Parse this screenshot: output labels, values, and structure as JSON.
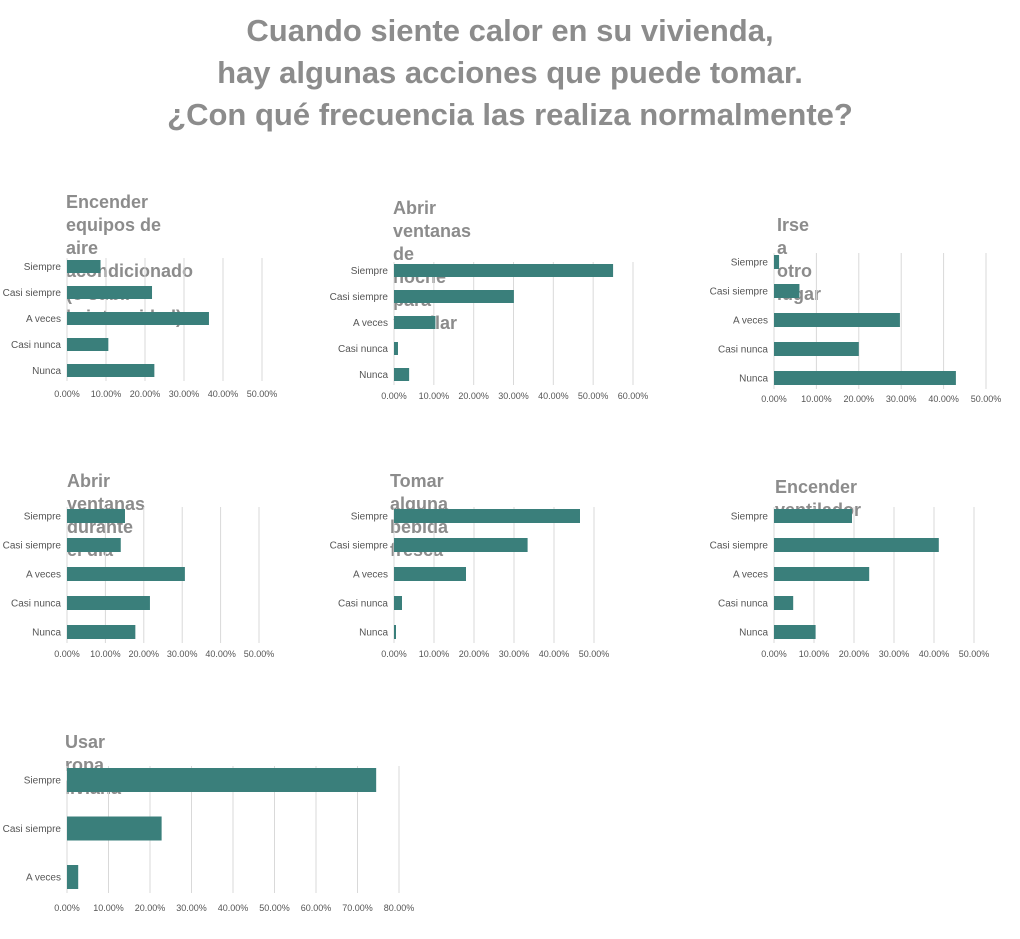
{
  "title_lines": [
    "Cuando siente calor en su vivienda,",
    "hay algunas acciones que puede tomar.",
    "¿Con qué frecuencia las realiza normalmente?"
  ],
  "colors": {
    "bar": "#3a7f7b",
    "grid": "#d9d9d9",
    "title": "#8c8c8c"
  },
  "chart_data": [
    {
      "type": "bar",
      "orientation": "horizontal",
      "title": "Encender equipos de aire\nacondicionado (o subir\nla intensidad)",
      "categories": [
        "Siempre",
        "Casi siempre",
        "A veces",
        "Casi nunca",
        "Nunca"
      ],
      "values": [
        8.6,
        21.8,
        36.4,
        10.6,
        22.4
      ],
      "xlim": [
        0,
        50
      ],
      "ticks": [
        0,
        10,
        20,
        30,
        40,
        50
      ],
      "tick_labels": [
        "0.00%",
        "10.00%",
        "20.00%",
        "30.00%",
        "40.00%",
        "50.00%"
      ],
      "grid": true,
      "legend": "none"
    },
    {
      "type": "bar",
      "orientation": "horizontal",
      "title": "Abrir ventanas de noche\npara ventilar",
      "categories": [
        "Siempre",
        "Casi siempre",
        "A veces",
        "Casi nunca",
        "Nunca"
      ],
      "values": [
        55.0,
        30.1,
        10.4,
        1.0,
        3.8
      ],
      "xlim": [
        0,
        60
      ],
      "ticks": [
        0,
        10,
        20,
        30,
        40,
        50,
        60
      ],
      "tick_labels": [
        "0.00%",
        "10.00%",
        "20.00%",
        "30.00%",
        "40.00%",
        "50.00%",
        "60.00%"
      ],
      "grid": true,
      "legend": "none"
    },
    {
      "type": "bar",
      "orientation": "horizontal",
      "title": "Irse a otro lugar",
      "categories": [
        "Siempre",
        "Casi siempre",
        "A veces",
        "Casi nunca",
        "Nunca"
      ],
      "values": [
        1.2,
        6.0,
        29.7,
        20.0,
        42.9
      ],
      "xlim": [
        0,
        50
      ],
      "ticks": [
        0,
        10,
        20,
        30,
        40,
        50
      ],
      "tick_labels": [
        "0.00%",
        "10.00%",
        "20.00%",
        "30.00%",
        "40.00%",
        "50.00%"
      ],
      "grid": true,
      "legend": "none"
    },
    {
      "type": "bar",
      "orientation": "horizontal",
      "title": "Abrir ventanas durante el día",
      "categories": [
        "Siempre",
        "Casi siempre",
        "A veces",
        "Casi nunca",
        "Nunca"
      ],
      "values": [
        15.1,
        14.0,
        30.7,
        21.6,
        17.8
      ],
      "xlim": [
        0,
        50
      ],
      "ticks": [
        0,
        10,
        20,
        30,
        40,
        50
      ],
      "tick_labels": [
        "0.00%",
        "10.00%",
        "20.00%",
        "30.00%",
        "40.00%",
        "50.00%"
      ],
      "grid": true,
      "legend": "none"
    },
    {
      "type": "bar",
      "orientation": "horizontal",
      "title": "Tomar alguna bebida fresca",
      "categories": [
        "Siempre",
        "Casi siempre",
        "A veces",
        "Casi nunca",
        "Nunca"
      ],
      "values": [
        46.5,
        33.4,
        18.0,
        2.0,
        0.5
      ],
      "xlim": [
        0,
        50
      ],
      "ticks": [
        0,
        10,
        20,
        30,
        40,
        50
      ],
      "tick_labels": [
        "0.00%",
        "10.00%",
        "20.00%",
        "30.00%",
        "40.00%",
        "50.00%"
      ],
      "grid": true,
      "legend": "none"
    },
    {
      "type": "bar",
      "orientation": "horizontal",
      "title": "Encender ventilador",
      "categories": [
        "Siempre",
        "Casi siempre",
        "A veces",
        "Casi nunca",
        "Nunca"
      ],
      "values": [
        19.5,
        41.2,
        23.8,
        4.8,
        10.4
      ],
      "xlim": [
        0,
        50
      ],
      "ticks": [
        0,
        10,
        20,
        30,
        40,
        50
      ],
      "tick_labels": [
        "0.00%",
        "10.00%",
        "20.00%",
        "30.00%",
        "40.00%",
        "50.00%"
      ],
      "grid": true,
      "legend": "none"
    },
    {
      "type": "bar",
      "orientation": "horizontal",
      "title": "Usar ropa liviana",
      "categories": [
        "Siempre",
        "Casi siempre",
        "A veces"
      ],
      "values": [
        74.5,
        22.8,
        2.7
      ],
      "xlim": [
        0,
        80
      ],
      "ticks": [
        0,
        10,
        20,
        30,
        40,
        50,
        60,
        70,
        80
      ],
      "tick_labels": [
        "0.00%",
        "10.00%",
        "20.00%",
        "30.00%",
        "40.00%",
        "50.00%",
        "60.00%",
        "70.00%",
        "80.00%"
      ],
      "grid": true,
      "legend": "none"
    }
  ]
}
